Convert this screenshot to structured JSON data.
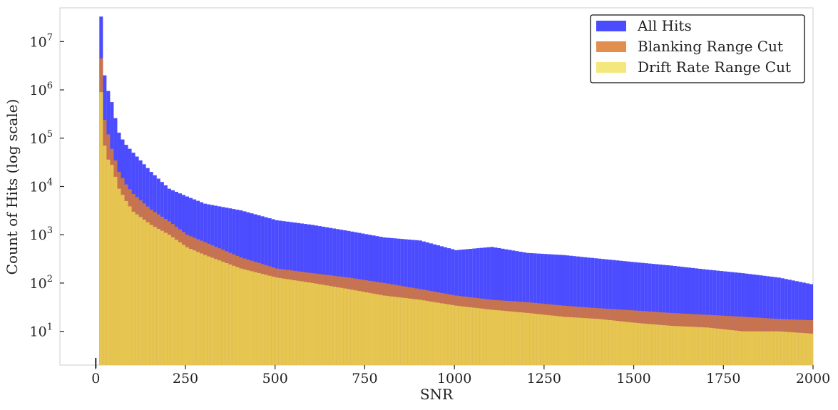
{
  "chart_data": {
    "type": "bar",
    "subtype": "histogram-overlay",
    "title": "",
    "xlabel": "SNR",
    "ylabel": "Count of Hits (log scale)",
    "yscale": "log",
    "xlim": [
      -100,
      2000
    ],
    "ylim": [
      2,
      50000000
    ],
    "grid": false,
    "legend_position": "top-right",
    "bin_start": 10,
    "bin_width": 10,
    "x_ticks": [
      {
        "value": 0,
        "label": "0"
      },
      {
        "value": 250,
        "label": "250"
      },
      {
        "value": 500,
        "label": "500"
      },
      {
        "value": 750,
        "label": "750"
      },
      {
        "value": 1000,
        "label": "1000"
      },
      {
        "value": 1250,
        "label": "1250"
      },
      {
        "value": 1500,
        "label": "1500"
      },
      {
        "value": 1750,
        "label": "1750"
      },
      {
        "value": 2000,
        "label": "2000"
      }
    ],
    "y_ticks": [
      {
        "value": 10,
        "base": "10",
        "exp": "1"
      },
      {
        "value": 100,
        "base": "10",
        "exp": "2"
      },
      {
        "value": 1000,
        "base": "10",
        "exp": "3"
      },
      {
        "value": 10000,
        "base": "10",
        "exp": "4"
      },
      {
        "value": 100000,
        "base": "10",
        "exp": "5"
      },
      {
        "value": 1000000,
        "base": "10",
        "exp": "6"
      },
      {
        "value": 10000000,
        "base": "10",
        "exp": "7"
      }
    ],
    "series": [
      {
        "name": "All Hits",
        "color": "#0000ff",
        "opacity": 0.7,
        "anchors": [
          [
            10,
            33000000
          ],
          [
            20,
            2000000
          ],
          [
            30,
            950000
          ],
          [
            40,
            560000
          ],
          [
            50,
            260000
          ],
          [
            60,
            130000
          ],
          [
            75,
            80000
          ],
          [
            100,
            50000
          ],
          [
            150,
            20000
          ],
          [
            200,
            9000
          ],
          [
            250,
            6200
          ],
          [
            300,
            4400
          ],
          [
            400,
            3200
          ],
          [
            500,
            2000
          ],
          [
            600,
            1600
          ],
          [
            700,
            1200
          ],
          [
            800,
            880
          ],
          [
            900,
            760
          ],
          [
            1000,
            480
          ],
          [
            1100,
            560
          ],
          [
            1200,
            420
          ],
          [
            1300,
            380
          ],
          [
            1400,
            320
          ],
          [
            1500,
            270
          ],
          [
            1600,
            230
          ],
          [
            1700,
            190
          ],
          [
            1800,
            160
          ],
          [
            1900,
            130
          ],
          [
            1990,
            95
          ]
        ]
      },
      {
        "name": "Blanking Range Cut",
        "color": "#dd7a30",
        "opacity": 0.85,
        "anchors": [
          [
            10,
            4500000
          ],
          [
            20,
            240000
          ],
          [
            30,
            120000
          ],
          [
            40,
            60000
          ],
          [
            60,
            20000
          ],
          [
            80,
            11000
          ],
          [
            100,
            7000
          ],
          [
            150,
            3300
          ],
          [
            200,
            1900
          ],
          [
            250,
            1000
          ],
          [
            300,
            700
          ],
          [
            400,
            340
          ],
          [
            500,
            200
          ],
          [
            600,
            160
          ],
          [
            700,
            130
          ],
          [
            800,
            100
          ],
          [
            900,
            75
          ],
          [
            1000,
            55
          ],
          [
            1100,
            45
          ],
          [
            1200,
            40
          ],
          [
            1300,
            34
          ],
          [
            1400,
            30
          ],
          [
            1500,
            27
          ],
          [
            1600,
            24
          ],
          [
            1700,
            22
          ],
          [
            1800,
            20
          ],
          [
            1900,
            18
          ],
          [
            1990,
            17
          ]
        ]
      },
      {
        "name": "Drift Rate Range Cut",
        "color": "#f0e050",
        "opacity": 0.75,
        "anchors": [
          [
            10,
            900000
          ],
          [
            20,
            70000
          ],
          [
            30,
            36000
          ],
          [
            40,
            28000
          ],
          [
            60,
            9000
          ],
          [
            80,
            5000
          ],
          [
            100,
            3000
          ],
          [
            150,
            1600
          ],
          [
            200,
            1000
          ],
          [
            250,
            550
          ],
          [
            300,
            380
          ],
          [
            400,
            200
          ],
          [
            500,
            130
          ],
          [
            600,
            100
          ],
          [
            700,
            75
          ],
          [
            800,
            55
          ],
          [
            900,
            45
          ],
          [
            1000,
            34
          ],
          [
            1100,
            28
          ],
          [
            1200,
            24
          ],
          [
            1300,
            20
          ],
          [
            1400,
            18
          ],
          [
            1500,
            15
          ],
          [
            1600,
            13
          ],
          [
            1700,
            12
          ],
          [
            1800,
            10
          ],
          [
            1900,
            10
          ],
          [
            1990,
            9
          ]
        ]
      }
    ]
  }
}
